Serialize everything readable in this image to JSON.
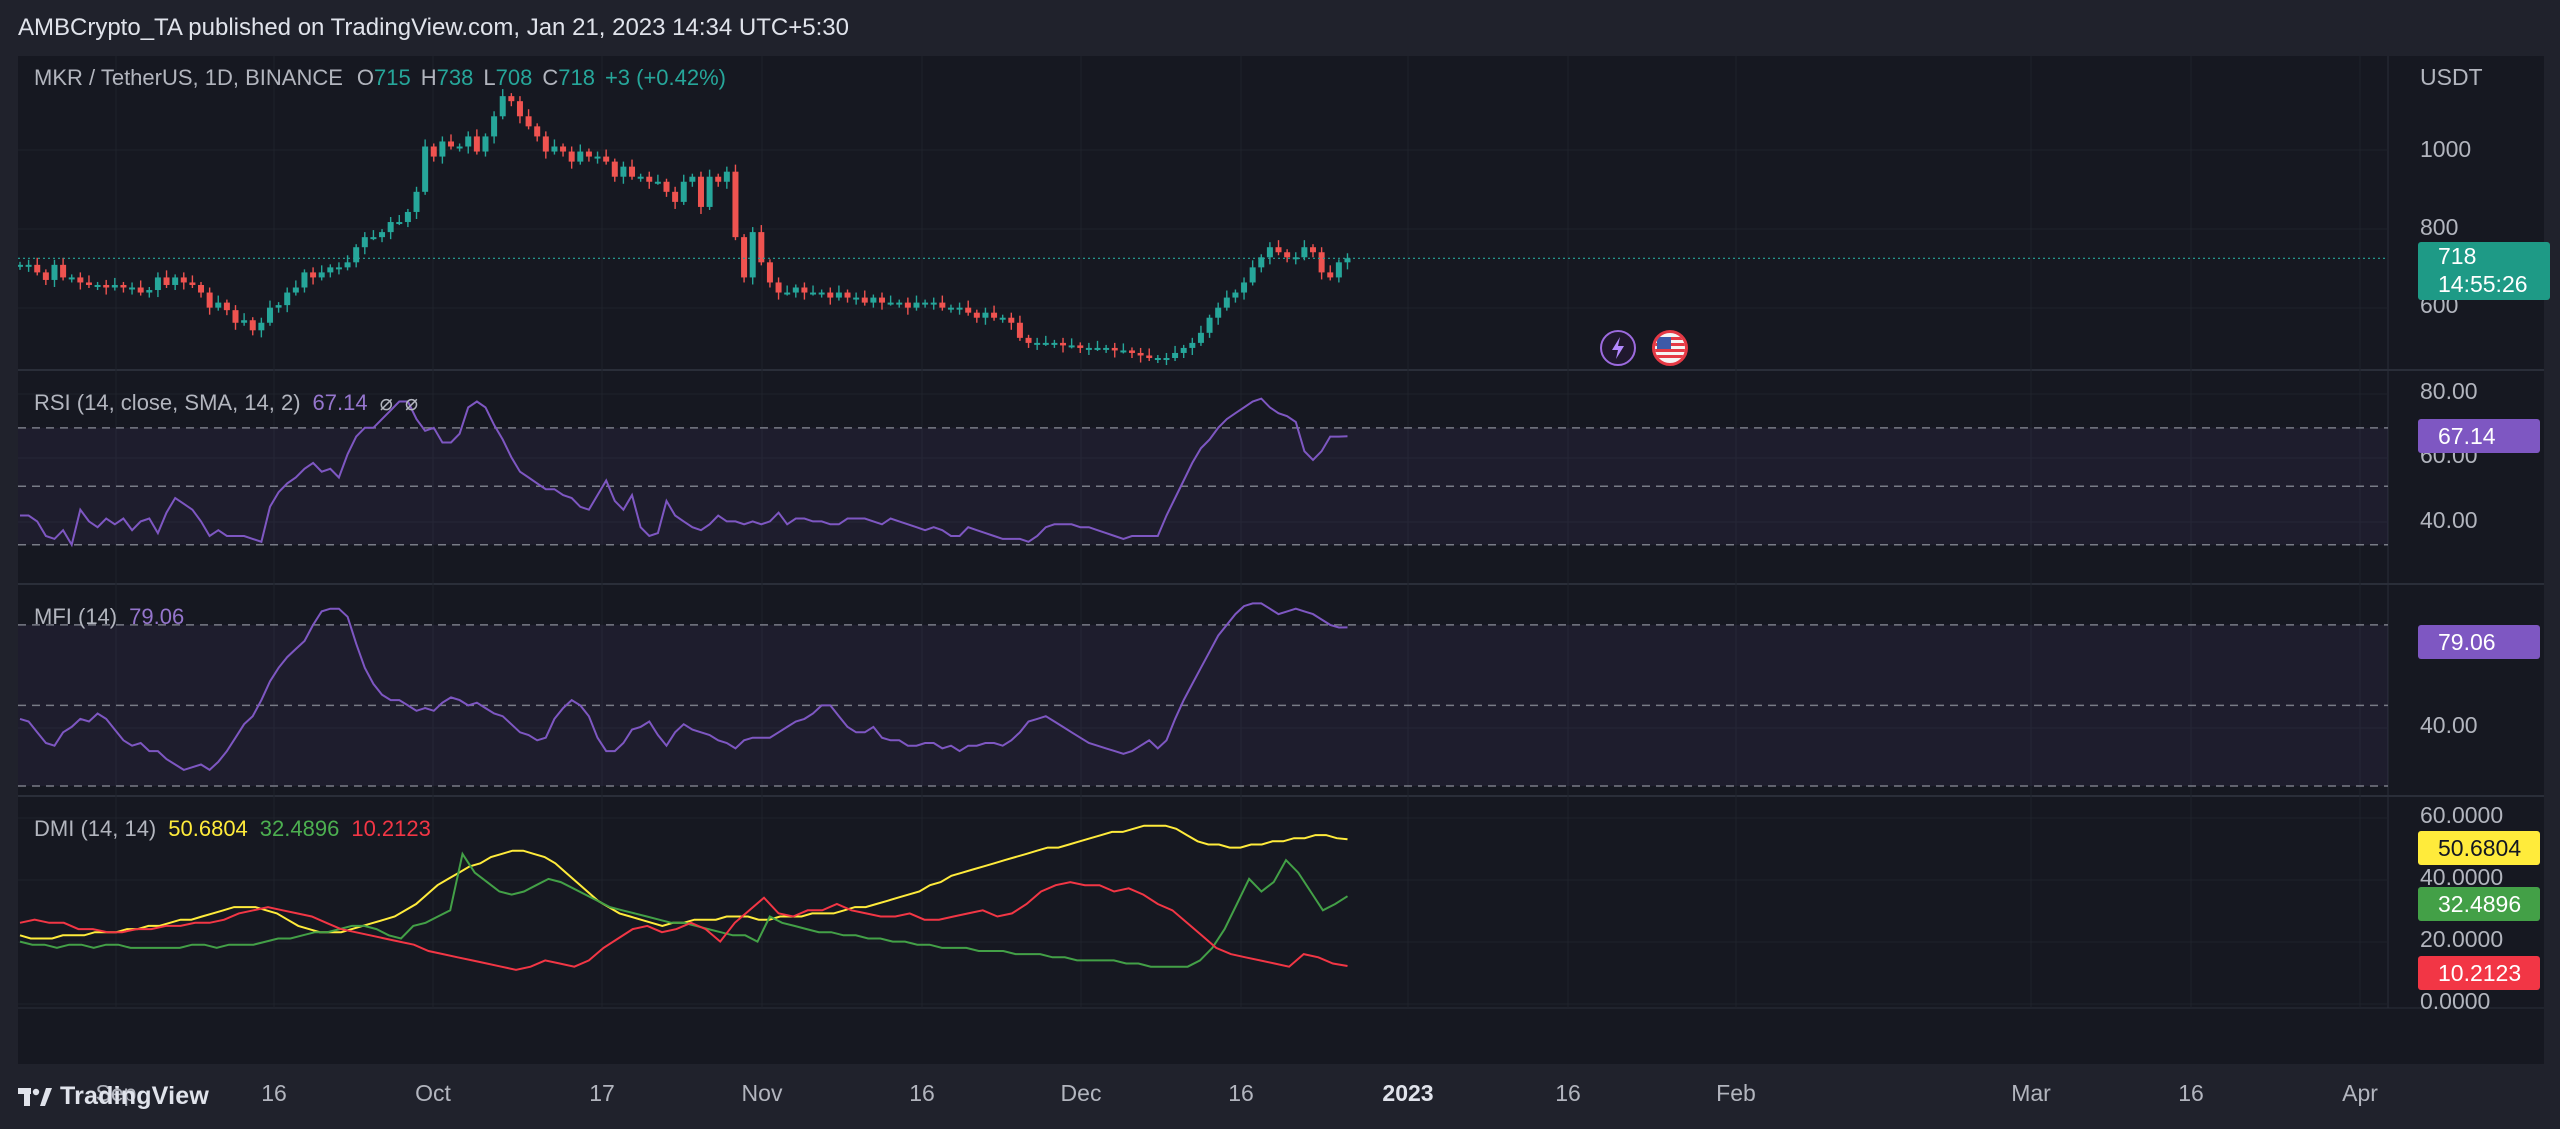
{
  "header": {
    "published_by": "AMBCrypto_TA published on TradingView.com, Jan 21, 2023 14:34 UTC+5:30"
  },
  "footer": {
    "brand": "TradingView"
  },
  "price_pane": {
    "symbol_line": "MKR / TetherUS, 1D, BINANCE",
    "o_label": "O",
    "o_value": "715",
    "h_label": "H",
    "h_value": "738",
    "l_label": "L",
    "l_value": "708",
    "c_label": "C",
    "c_value": "718",
    "change": "+3 (+0.42%)",
    "currency": "USDT",
    "y_ticks": [
      "1000",
      "800",
      "600"
    ],
    "last_price": "718",
    "countdown": "14:55:26",
    "up_color": "#26a69a",
    "down_color": "#ef5350"
  },
  "rsi_pane": {
    "title": "RSI (14, close, SMA, 14, 2)",
    "value": "67.14",
    "icons": [
      "hide-icon",
      "hide-icon"
    ],
    "y_ticks": [
      "80.00",
      "60.00",
      "40.00"
    ],
    "tag": "67.14",
    "color": "#7e57c2"
  },
  "mfi_pane": {
    "title": "MFI (14)",
    "value": "79.06",
    "y_ticks": [
      "40.00"
    ],
    "tag": "79.06",
    "color": "#7e57c2"
  },
  "dmi_pane": {
    "title": "DMI (14, 14)",
    "adx": "50.6804",
    "plus_di": "32.4896",
    "minus_di": "10.2123",
    "y_ticks": [
      "60.0000",
      "40.0000",
      "20.0000",
      "0.0000"
    ],
    "tag_adx": "50.6804",
    "tag_plus": "32.4896",
    "tag_minus": "10.2123",
    "adx_color": "#ffeb3b",
    "plus_color": "#43a047",
    "minus_color": "#f23645"
  },
  "x_axis": {
    "labels": [
      "Sep",
      "16",
      "Oct",
      "17",
      "Nov",
      "16",
      "Dec",
      "16",
      "2023",
      "16",
      "Feb",
      "Mar",
      "16",
      "Apr"
    ]
  },
  "chart_data": [
    {
      "type": "candlestick",
      "title": "MKR / TetherUS, 1D, BINANCE",
      "ylabel": "USDT",
      "ylim": [
        520,
        1080
      ],
      "x_range": [
        "2022-08-19",
        "2023-04-05"
      ],
      "close": [
        705,
        705,
        690,
        675,
        705,
        680,
        680,
        670,
        665,
        665,
        660,
        665,
        660,
        660,
        650,
        655,
        680,
        665,
        680,
        670,
        665,
        650,
        620,
        630,
        615,
        590,
        595,
        575,
        590,
        620,
        625,
        650,
        660,
        690,
        680,
        690,
        700,
        700,
        710,
        740,
        760,
        760,
        770,
        790,
        790,
        810,
        850,
        940,
        920,
        950,
        940,
        940,
        960,
        930,
        960,
        1000,
        1040,
        1030,
        1000,
        980,
        960,
        930,
        940,
        930,
        910,
        930,
        920,
        920,
        910,
        880,
        900,
        880,
        880,
        870,
        870,
        850,
        830,
        870,
        880,
        820,
        880,
        870,
        890,
        760,
        680,
        770,
        710,
        670,
        650,
        650,
        660,
        650,
        650,
        650,
        640,
        650,
        640,
        640,
        630,
        640,
        630,
        630,
        630,
        620,
        630,
        630,
        630,
        620,
        620,
        620,
        610,
        600,
        610,
        600,
        600,
        590,
        560,
        550,
        550,
        550,
        550,
        545,
        545,
        540,
        540,
        540,
        540,
        535,
        535,
        530,
        525,
        520,
        520,
        520,
        530,
        540,
        550,
        570,
        600,
        620,
        640,
        650,
        670,
        700,
        720,
        740,
        730,
        720,
        720,
        740,
        730,
        690,
        680,
        710,
        718
      ]
    },
    {
      "type": "line",
      "title": "RSI (14, close, SMA, 14, 2)",
      "ylim": [
        20,
        85
      ],
      "bands": [
        30,
        50,
        70
      ],
      "values": [
        40,
        40,
        38,
        33,
        32,
        35,
        30,
        42,
        38,
        36,
        39,
        37,
        39,
        35,
        38,
        39,
        34,
        41,
        46,
        44,
        42,
        38,
        33,
        35,
        33,
        33,
        33,
        32,
        31,
        43,
        48,
        51,
        53,
        56,
        58,
        55,
        56,
        53,
        61,
        67,
        70,
        70,
        73,
        76,
        79,
        79,
        73,
        69,
        70,
        65,
        65,
        68,
        77,
        79,
        77,
        71,
        66,
        60,
        55,
        53,
        51,
        49,
        49,
        47,
        46,
        43,
        42,
        47,
        52,
        45,
        42,
        47,
        36,
        33,
        34,
        45,
        40,
        38,
        36,
        35,
        37,
        40,
        38,
        38,
        37,
        38,
        37,
        38,
        41,
        37,
        39,
        39,
        38,
        38,
        37,
        37,
        39,
        39,
        39,
        38,
        37,
        39,
        38,
        37,
        36,
        35,
        36,
        35,
        33,
        33,
        36,
        35,
        34,
        33,
        32,
        32,
        32,
        31,
        33,
        36,
        37,
        37,
        37,
        36,
        36,
        35,
        34,
        33,
        32,
        33,
        33,
        33,
        33,
        40,
        46,
        52,
        58,
        63,
        66,
        70,
        73,
        75,
        77,
        79,
        80,
        77,
        75,
        74,
        72,
        62,
        59,
        62,
        67,
        67,
        67.14
      ]
    },
    {
      "type": "line",
      "title": "MFI (14)",
      "ylim": [
        20,
        90
      ],
      "bands": [
        20,
        50,
        80
      ],
      "values": [
        45,
        44,
        40,
        36,
        35,
        40,
        42,
        45,
        44,
        47,
        45,
        41,
        37,
        35,
        36,
        33,
        33,
        30,
        28,
        26,
        27,
        28,
        26,
        29,
        33,
        38,
        43,
        46,
        52,
        59,
        64,
        68,
        71,
        74,
        80,
        85,
        86,
        86,
        83,
        73,
        64,
        58,
        54,
        52,
        52,
        50,
        48,
        49,
        48,
        51,
        53,
        52,
        50,
        51,
        49,
        47,
        46,
        43,
        40,
        39,
        37,
        38,
        45,
        49,
        52,
        50,
        46,
        38,
        33,
        33,
        36,
        41,
        42,
        44,
        39,
        35,
        40,
        43,
        41,
        40,
        39,
        37,
        36,
        34,
        37,
        38,
        38,
        38,
        40,
        42,
        44,
        45,
        47,
        50,
        50,
        46,
        42,
        40,
        40,
        42,
        38,
        37,
        37,
        35,
        35,
        36,
        36,
        34,
        35,
        33,
        35,
        35,
        36,
        36,
        35,
        37,
        40,
        44,
        45,
        46,
        44,
        42,
        40,
        38,
        36,
        35,
        34,
        33,
        32,
        33,
        35,
        37,
        34,
        37,
        45,
        52,
        58,
        64,
        70,
        76,
        80,
        84,
        87,
        88,
        88,
        86,
        84,
        85,
        86,
        85,
        84,
        82,
        80,
        79,
        79.06
      ]
    },
    {
      "type": "line",
      "title": "DMI (14, 14)",
      "ylim": [
        0,
        60
      ],
      "series": [
        {
          "name": "ADX",
          "values": [
            20,
            19,
            19,
            19,
            20,
            20,
            20,
            21,
            21,
            21,
            22,
            22,
            23,
            23,
            24,
            25,
            25,
            26,
            27,
            28,
            29,
            29,
            29,
            28,
            27,
            25,
            23,
            22,
            21,
            21,
            21,
            22,
            23,
            24,
            25,
            26,
            28,
            30,
            33,
            36,
            38,
            40,
            42,
            43,
            45,
            46,
            47,
            47,
            46,
            45,
            43,
            40,
            37,
            34,
            31,
            29,
            27,
            26,
            25,
            24,
            23,
            24,
            24,
            25,
            25,
            25,
            26,
            26,
            26,
            25,
            25,
            26,
            26,
            26,
            27,
            27,
            27,
            28,
            29,
            29,
            30,
            31,
            32,
            33,
            34,
            36,
            37,
            39,
            40,
            41,
            42,
            43,
            44,
            45,
            46,
            47,
            48,
            48,
            49,
            50,
            51,
            52,
            53,
            53,
            54,
            55,
            55,
            55,
            54,
            52,
            50,
            49,
            49,
            48,
            48,
            49,
            49,
            50,
            50,
            51,
            51,
            52,
            52,
            51,
            50.6804
          ]
        },
        {
          "name": "+DI",
          "values": [
            18,
            17,
            17,
            16,
            17,
            17,
            16,
            17,
            17,
            16,
            16,
            16,
            16,
            16,
            17,
            17,
            16,
            17,
            17,
            17,
            18,
            19,
            19,
            20,
            21,
            21,
            22,
            23,
            23,
            22,
            20,
            19,
            23,
            24,
            26,
            28,
            46,
            40,
            37,
            34,
            33,
            34,
            36,
            38,
            37,
            35,
            33,
            31,
            29,
            28,
            27,
            26,
            25,
            24,
            24,
            23,
            22,
            21,
            20,
            20,
            18,
            26,
            24,
            23,
            22,
            21,
            21,
            20,
            20,
            19,
            19,
            18,
            18,
            17,
            17,
            16,
            16,
            16,
            15,
            15,
            15,
            14,
            14,
            14,
            13,
            13,
            12,
            12,
            12,
            12,
            11,
            11,
            10,
            10,
            10,
            10,
            12,
            16,
            22,
            30,
            38,
            34,
            37,
            44,
            40,
            34,
            28,
            30,
            32.4896
          ]
        },
        {
          "name": "-DI",
          "values": [
            24,
            25,
            24,
            24,
            22,
            22,
            21,
            21,
            22,
            22,
            23,
            23,
            24,
            24,
            25,
            27,
            28,
            29,
            28,
            27,
            26,
            24,
            22,
            21,
            20,
            19,
            18,
            17,
            15,
            14,
            13,
            12,
            11,
            10,
            9,
            10,
            12,
            11,
            10,
            12,
            16,
            19,
            22,
            23,
            21,
            22,
            24,
            22,
            18,
            24,
            28,
            32,
            27,
            26,
            28,
            28,
            30,
            28,
            27,
            26,
            26,
            27,
            25,
            25,
            26,
            27,
            28,
            26,
            27,
            30,
            34,
            36,
            37,
            36,
            36,
            34,
            35,
            33,
            30,
            28,
            24,
            20,
            16,
            14,
            13,
            12,
            11,
            10,
            14,
            13,
            11,
            10.2123
          ]
        }
      ]
    }
  ]
}
